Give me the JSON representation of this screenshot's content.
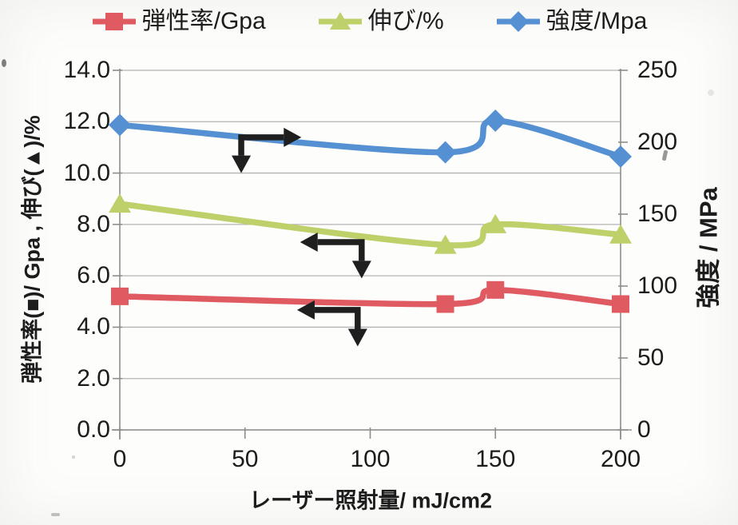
{
  "page": {
    "background": "#fdfdfc",
    "text_color": "#1c1c1c",
    "gridline_color": "#b6b4b2",
    "axis_color": "#8f8d8b",
    "annotation_color": "#1f1f1f"
  },
  "chart_data": {
    "type": "line",
    "title": "",
    "x_label": "レーザー照射量/ mJ/cm2",
    "y_left_label": "弾性率(■)/ Gpa , 伸び(▲)/%",
    "y_right_label": "強度 / MPa",
    "x": [
      0,
      130,
      150,
      200
    ],
    "x_range": [
      0,
      200
    ],
    "y_left_range": [
      0,
      14
    ],
    "y_right_range": [
      0,
      250
    ],
    "x_tick_labels": [
      "0",
      "50",
      "100",
      "150",
      "200"
    ],
    "y_left_tick_labels": [
      "14.0",
      "12.0",
      "10.0",
      "8.0",
      "6.0",
      "4.0",
      "2.0",
      "0.0"
    ],
    "y_right_tick_labels": [
      "250",
      "200",
      "150",
      "100",
      "50",
      "0"
    ],
    "grid": true,
    "smoothed_lines": true,
    "legend_position": "top",
    "series": [
      {
        "name": "弾性率/Gpa",
        "axis": "left",
        "marker": "square",
        "color": "#e05a62",
        "values": [
          5.2,
          4.9,
          5.45,
          4.9
        ]
      },
      {
        "name": "伸び/%",
        "axis": "left",
        "marker": "triangle",
        "color": "#bdd06a",
        "values": [
          8.8,
          7.2,
          8.0,
          7.6
        ]
      },
      {
        "name": "強度/Mpa",
        "axis": "right",
        "marker": "diamond",
        "color": "#5590d2",
        "values": [
          212,
          193,
          215,
          190
        ]
      }
    ],
    "annotations": [
      {
        "type": "elbow_arrow",
        "series_hint": "強度/Mpa",
        "axis": "left",
        "corner": [
          48.5,
          11.39
        ],
        "h_tip": [
          72.5,
          11.39
        ],
        "v_tip": [
          48.5,
          10.0
        ]
      },
      {
        "type": "elbow_arrow",
        "series_hint": "伸び/%",
        "axis": "left",
        "corner": [
          96.6,
          7.31
        ],
        "h_tip": [
          72.0,
          7.31
        ],
        "v_tip": [
          96.6,
          5.9
        ]
      },
      {
        "type": "elbow_arrow",
        "series_hint": "弾性率/Gpa",
        "axis": "left",
        "corner": [
          95.0,
          4.67
        ],
        "h_tip": [
          70.8,
          4.67
        ],
        "v_tip": [
          95.0,
          3.25
        ]
      }
    ]
  }
}
